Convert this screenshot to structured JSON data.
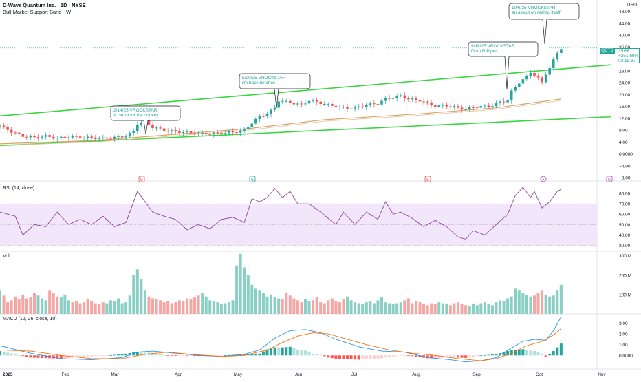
{
  "header": {
    "symbol_line": "D-Wave Quantum Inc. · 1D · NYSE",
    "indicator": "Bull Market Support Band - W"
  },
  "currency": "USD",
  "price_tag": {
    "symbol": "QBTS",
    "price": "35.66",
    "change": "+251.69%",
    "countdown": "02:18:37"
  },
  "panes": {
    "rsi_title": "RSI (14, close)",
    "vol_title": "Vol",
    "macd_title": "MACD (12, 26, close, 10)"
  },
  "colors": {
    "up": "#26a69a",
    "down": "#ef5350",
    "trendline": "#37d63f",
    "band": "#d9a46b",
    "rsi": "#8e3f9b",
    "macd": "#2196f3",
    "signal": "#ff6d00",
    "note": "#26a69a"
  },
  "annotations": [
    {
      "date": "2/14/25 VROCKSTAR",
      "text": "A carrot for the donkey"
    },
    {
      "date": "5/20/25 VROCKSTAR",
      "text": "i'm back betches"
    },
    {
      "date": "9/16/25 VROCKSTAR",
      "text": "Grim RIP'per"
    },
    {
      "date": "10/6/25 VROCKSTAR",
      "text": "an assult on reality, itself"
    }
  ],
  "event_markers": [
    {
      "label": "E",
      "type": "earnings-red"
    },
    {
      "label": "E",
      "type": "earnings-green"
    },
    {
      "label": "E",
      "type": "earnings-red"
    },
    {
      "label": "⚡",
      "type": "flash"
    },
    {
      "label": "E",
      "type": "earnings-purple"
    }
  ],
  "chart_data": {
    "type": "candlestick",
    "x_labels": [
      "2025",
      "Feb",
      "Mar",
      "Apr",
      "May",
      "Jun",
      "Jul",
      "Aug",
      "Sep",
      "Oct",
      "Nov"
    ],
    "price_axis": {
      "ticks": [
        "48.00",
        "44.00",
        "40.00",
        "36.00",
        "32.00",
        "28.00",
        "24.00",
        "20.00",
        "16.00",
        "12.00",
        "8.00",
        "4.00",
        "0.0000",
        "−4.00",
        "−8.00"
      ],
      "range": [
        -8,
        50
      ]
    },
    "rsi_axis": {
      "ticks": [
        "80.00",
        "70.00",
        "60.00",
        "50.00",
        "40.00",
        "30.00"
      ],
      "range": [
        25,
        90
      ],
      "band": [
        30,
        70
      ]
    },
    "vol_axis": {
      "ticks": [
        "300 M",
        "200 M",
        "100 M"
      ],
      "range": [
        0,
        320
      ]
    },
    "macd_axis": {
      "ticks": [
        "3.00",
        "2.00",
        "1.00",
        "0.0000"
      ],
      "range": [
        -1.2,
        3.8
      ]
    },
    "close_path": [
      [
        0,
        9.5
      ],
      [
        3,
        7.5
      ],
      [
        6,
        6.0
      ],
      [
        9,
        5.5
      ],
      [
        12,
        6.0
      ],
      [
        15,
        5.3
      ],
      [
        18,
        5.8
      ],
      [
        21,
        5.6
      ],
      [
        24,
        5.4
      ],
      [
        27,
        5.2
      ],
      [
        30,
        5.5
      ],
      [
        33,
        6.0
      ],
      [
        35,
        7.5
      ],
      [
        36,
        10.2
      ],
      [
        38,
        11.0
      ],
      [
        40,
        9.0
      ],
      [
        43,
        8.0
      ],
      [
        46,
        7.5
      ],
      [
        49,
        7.2
      ],
      [
        52,
        6.8
      ],
      [
        55,
        6.8
      ],
      [
        58,
        7.0
      ],
      [
        61,
        7.3
      ],
      [
        64,
        8.0
      ],
      [
        66,
        10.5
      ],
      [
        68,
        12.5
      ],
      [
        70,
        13.5
      ],
      [
        72,
        15.5
      ],
      [
        73,
        18.0
      ],
      [
        75,
        17.5
      ],
      [
        77,
        17.0
      ],
      [
        79,
        16.5
      ],
      [
        81,
        18.0
      ],
      [
        83,
        17.5
      ],
      [
        86,
        16.5
      ],
      [
        88,
        16.0
      ],
      [
        90,
        15.5
      ],
      [
        93,
        15.5
      ],
      [
        96,
        16.5
      ],
      [
        99,
        17.0
      ],
      [
        101,
        18.5
      ],
      [
        103,
        19.0
      ],
      [
        105,
        19.5
      ],
      [
        107,
        18.5
      ],
      [
        110,
        18.0
      ],
      [
        112,
        17.0
      ],
      [
        114,
        16.0
      ],
      [
        117,
        16.3
      ],
      [
        120,
        15.5
      ],
      [
        122,
        15.0
      ],
      [
        124,
        15.8
      ],
      [
        127,
        16.0
      ],
      [
        129,
        16.3
      ],
      [
        131,
        17.5
      ],
      [
        133,
        18.0
      ],
      [
        134,
        21.0
      ],
      [
        135,
        22.5
      ],
      [
        136,
        24.0
      ],
      [
        137,
        25.0
      ],
      [
        138,
        26.0
      ],
      [
        139,
        27.5
      ],
      [
        140,
        26.5
      ],
      [
        141,
        25.5
      ],
      [
        142,
        24.0
      ],
      [
        143,
        27.0
      ],
      [
        144,
        29.0
      ],
      [
        145,
        31.5
      ],
      [
        146,
        34.0
      ],
      [
        147,
        35.66
      ]
    ],
    "band_path": [
      [
        0,
        3.4
      ],
      [
        25,
        4.5
      ],
      [
        45,
        6.5
      ],
      [
        65,
        8.5
      ],
      [
        85,
        11.5
      ],
      [
        110,
        13.5
      ],
      [
        130,
        15.5
      ],
      [
        147,
        18.5
      ]
    ],
    "upper_trendline": [
      [
        0,
        12.8
      ],
      [
        160,
        30.0
      ]
    ],
    "lower_trendline": [
      [
        0,
        2.8
      ],
      [
        160,
        12.5
      ]
    ],
    "rsi_path": [
      [
        0,
        62
      ],
      [
        4,
        58
      ],
      [
        6,
        40
      ],
      [
        9,
        50
      ],
      [
        12,
        48
      ],
      [
        15,
        62
      ],
      [
        18,
        50
      ],
      [
        21,
        55
      ],
      [
        24,
        50
      ],
      [
        27,
        58
      ],
      [
        30,
        48
      ],
      [
        33,
        52
      ],
      [
        36,
        82
      ],
      [
        38,
        72
      ],
      [
        40,
        62
      ],
      [
        43,
        58
      ],
      [
        46,
        55
      ],
      [
        49,
        45
      ],
      [
        52,
        50
      ],
      [
        55,
        46
      ],
      [
        58,
        55
      ],
      [
        61,
        57
      ],
      [
        64,
        52
      ],
      [
        66,
        75
      ],
      [
        68,
        72
      ],
      [
        70,
        76
      ],
      [
        72,
        85
      ],
      [
        74,
        76
      ],
      [
        76,
        82
      ],
      [
        78,
        70
      ],
      [
        81,
        70
      ],
      [
        84,
        62
      ],
      [
        86,
        56
      ],
      [
        88,
        50
      ],
      [
        90,
        62
      ],
      [
        93,
        50
      ],
      [
        96,
        62
      ],
      [
        99,
        55
      ],
      [
        101,
        72
      ],
      [
        103,
        60
      ],
      [
        105,
        62
      ],
      [
        108,
        56
      ],
      [
        111,
        48
      ],
      [
        114,
        54
      ],
      [
        117,
        48
      ],
      [
        120,
        38
      ],
      [
        122,
        36
      ],
      [
        124,
        44
      ],
      [
        127,
        40
      ],
      [
        130,
        50
      ],
      [
        133,
        60
      ],
      [
        135,
        78
      ],
      [
        137,
        86
      ],
      [
        139,
        76
      ],
      [
        140,
        82
      ],
      [
        142,
        66
      ],
      [
        144,
        72
      ],
      [
        146,
        82
      ],
      [
        147,
        84
      ]
    ],
    "vol_series_note": "volume bars, millions",
    "vol_values": [
      120,
      95,
      60,
      70,
      90,
      75,
      100,
      80,
      85,
      110,
      95,
      80,
      70,
      120,
      110,
      90,
      85,
      100,
      70,
      60,
      65,
      55,
      60,
      75,
      65,
      55,
      50,
      60,
      55,
      70,
      65,
      80,
      55,
      60,
      95,
      200,
      230,
      180,
      120,
      90,
      80,
      75,
      70,
      60,
      65,
      55,
      60,
      70,
      65,
      80,
      75,
      85,
      95,
      110,
      90,
      70,
      65,
      60,
      50,
      55,
      60,
      70,
      250,
      310,
      240,
      200,
      150,
      130,
      120,
      110,
      90,
      100,
      85,
      80,
      75,
      110,
      95,
      80,
      70,
      60,
      75,
      65,
      70,
      85,
      60,
      55,
      70,
      80,
      65,
      60,
      75,
      90,
      70,
      60,
      55,
      50,
      60,
      65,
      55,
      70,
      85,
      60,
      55,
      50,
      55,
      60,
      70,
      80,
      55,
      65,
      60,
      50,
      45,
      55,
      50,
      60,
      55,
      50,
      45,
      55,
      60,
      50,
      45,
      40,
      50,
      45,
      55,
      60,
      50,
      45,
      60,
      70,
      65,
      80,
      90,
      130,
      120,
      110,
      100,
      90,
      95,
      110,
      120,
      100,
      90,
      95,
      120,
      150
    ],
    "macd_path": [
      [
        0,
        0.9
      ],
      [
        8,
        0.2
      ],
      [
        16,
        -0.3
      ],
      [
        24,
        -0.4
      ],
      [
        32,
        -0.2
      ],
      [
        36,
        0.3
      ],
      [
        40,
        0.4
      ],
      [
        46,
        0.2
      ],
      [
        52,
        0.0
      ],
      [
        58,
        -0.1
      ],
      [
        64,
        0.1
      ],
      [
        68,
        0.5
      ],
      [
        72,
        1.6
      ],
      [
        76,
        2.3
      ],
      [
        80,
        2.4
      ],
      [
        84,
        2.1
      ],
      [
        88,
        1.5
      ],
      [
        94,
        0.8
      ],
      [
        100,
        0.4
      ],
      [
        106,
        0.3
      ],
      [
        112,
        -0.2
      ],
      [
        118,
        -0.4
      ],
      [
        122,
        -0.6
      ],
      [
        126,
        -0.5
      ],
      [
        130,
        -0.2
      ],
      [
        134,
        0.7
      ],
      [
        137,
        1.3
      ],
      [
        140,
        1.5
      ],
      [
        143,
        1.4
      ],
      [
        145,
        2.3
      ],
      [
        147,
        3.6
      ]
    ],
    "signal_path": [
      [
        0,
        0.5
      ],
      [
        8,
        0.4
      ],
      [
        16,
        0.0
      ],
      [
        24,
        -0.3
      ],
      [
        32,
        -0.3
      ],
      [
        38,
        0.1
      ],
      [
        44,
        0.3
      ],
      [
        50,
        0.1
      ],
      [
        58,
        -0.1
      ],
      [
        64,
        0.0
      ],
      [
        70,
        0.5
      ],
      [
        74,
        1.2
      ],
      [
        78,
        1.8
      ],
      [
        82,
        2.1
      ],
      [
        86,
        2.0
      ],
      [
        90,
        1.6
      ],
      [
        96,
        1.0
      ],
      [
        102,
        0.5
      ],
      [
        108,
        0.2
      ],
      [
        114,
        0.0
      ],
      [
        120,
        -0.3
      ],
      [
        126,
        -0.5
      ],
      [
        130,
        -0.3
      ],
      [
        134,
        0.2
      ],
      [
        138,
        0.9
      ],
      [
        142,
        1.3
      ],
      [
        145,
        1.9
      ],
      [
        147,
        2.5
      ]
    ]
  }
}
